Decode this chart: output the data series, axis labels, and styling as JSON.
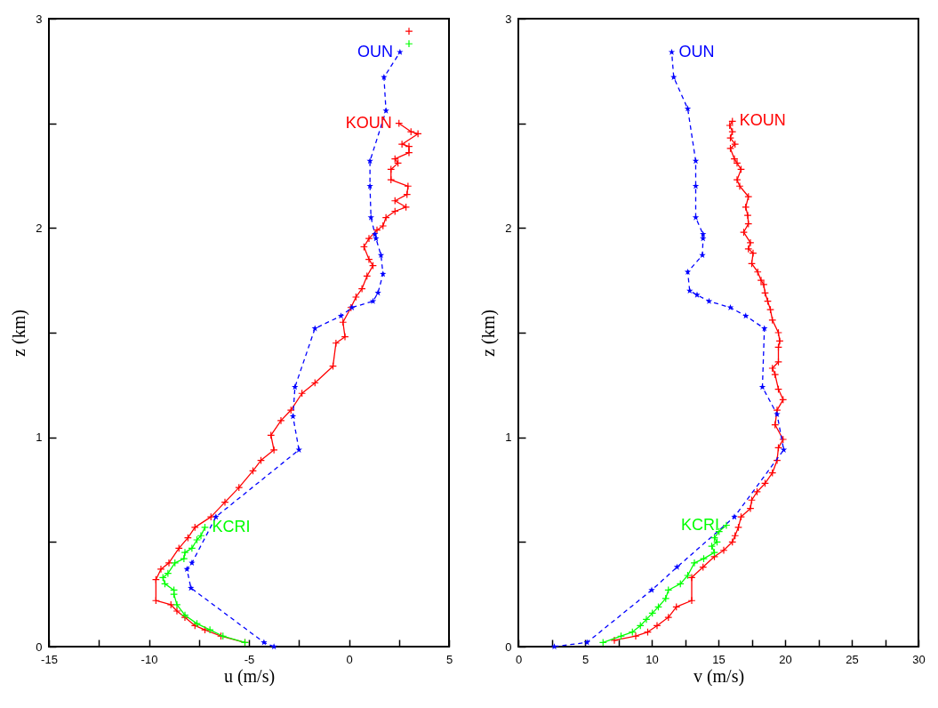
{
  "chart_data": [
    {
      "type": "line",
      "xlabel": "u (m/s)",
      "ylabel": "z (km)",
      "xlim": [
        -15,
        5
      ],
      "ylim": [
        0,
        3
      ],
      "xticks": [
        -15,
        {
          "value": -12.5,
          "label": null
        },
        -10,
        {
          "value": -7.5,
          "label": null
        },
        -5,
        {
          "value": -2.5,
          "label": null
        },
        0,
        {
          "value": 2.5,
          "label": null
        },
        5
      ],
      "yticks": [
        0,
        {
          "value": 0.5,
          "label": null
        },
        1,
        {
          "value": 1.5,
          "label": null
        },
        2,
        {
          "value": 2.5,
          "label": null
        },
        3
      ],
      "series": [
        {
          "name": "KOUN",
          "color": "#ff0000",
          "marker": "cross",
          "line_style": "solid",
          "x": [
            -5.2,
            -6.4,
            -7.2,
            -7.7,
            -8.2,
            -8.6,
            -8.9,
            -9.65,
            -9.65,
            -9.4,
            -9.0,
            -8.5,
            -8.05,
            -7.7,
            -6.9,
            -6.2,
            -5.5,
            -4.8,
            -4.4,
            -3.75,
            -3.9,
            -3.4,
            -2.9,
            -2.35,
            -1.7,
            -0.8,
            -0.65,
            -0.2,
            -0.3,
            0.1,
            0.35,
            0.65,
            0.9,
            1.2,
            1.0,
            0.75,
            1.0,
            1.4,
            1.7,
            1.85,
            2.3,
            2.85,
            2.3,
            2.9,
            2.95,
            2.1,
            2.1,
            2.45,
            2.3,
            3.0,
            3.0,
            2.65,
            3.45,
            3.1,
            2.5,
            null,
            3.0
          ],
          "values": [
            0.02,
            0.05,
            0.08,
            0.1,
            0.14,
            0.17,
            0.2,
            0.22,
            0.32,
            0.37,
            0.4,
            0.47,
            0.52,
            0.57,
            0.62,
            0.69,
            0.76,
            0.84,
            0.89,
            0.94,
            1.01,
            1.08,
            1.13,
            1.21,
            1.26,
            1.34,
            1.45,
            1.48,
            1.55,
            1.62,
            1.67,
            1.71,
            1.77,
            1.82,
            1.85,
            1.91,
            1.95,
            1.99,
            2.01,
            2.05,
            2.08,
            2.1,
            2.13,
            2.16,
            2.2,
            2.23,
            2.28,
            2.31,
            2.33,
            2.36,
            2.39,
            2.4,
            2.45,
            2.46,
            2.5,
            null,
            2.94
          ]
        },
        {
          "name": "OUN",
          "color": "#0000ff",
          "marker": "star",
          "line_style": "dashed",
          "x": [
            -3.75,
            -4.25,
            -7.9,
            -8.1,
            -7.85,
            -6.65,
            -2.5,
            -2.8,
            -2.7,
            -1.7,
            -0.4,
            0.15,
            1.2,
            1.45,
            1.7,
            1.6,
            1.35,
            1.3,
            1.1,
            1.05,
            1.05,
            1.85,
            1.75,
            2.55
          ],
          "values": [
            0.0,
            0.02,
            0.28,
            0.37,
            0.4,
            0.62,
            0.94,
            1.1,
            1.24,
            1.52,
            1.58,
            1.62,
            1.65,
            1.69,
            1.78,
            1.87,
            1.95,
            1.97,
            2.05,
            2.2,
            2.32,
            2.56,
            2.72,
            2.84
          ]
        },
        {
          "name": "KCRI",
          "color": "#00ff00",
          "marker": "cross",
          "line_style": "solid",
          "x": [
            -5.2,
            -6.3,
            -6.95,
            -7.6,
            -8.2,
            -8.6,
            -8.75,
            -8.75,
            -9.2,
            -9.3,
            -9.05,
            -8.7,
            -8.25,
            -8.2,
            -7.85,
            -7.6,
            -7.4,
            -7.2,
            null,
            3.0
          ],
          "values": [
            0.02,
            0.05,
            0.08,
            0.11,
            0.15,
            0.2,
            0.25,
            0.27,
            0.3,
            0.33,
            0.35,
            0.4,
            0.42,
            0.45,
            0.47,
            0.51,
            0.53,
            0.57,
            null,
            2.88
          ]
        }
      ]
    },
    {
      "type": "line",
      "xlabel": "v (m/s)",
      "ylabel": "z (km)",
      "xlim": [
        0,
        30
      ],
      "ylim": [
        0,
        3
      ],
      "xticks": [
        0,
        {
          "value": 2.5,
          "label": null
        },
        5,
        {
          "value": 7.5,
          "label": null
        },
        10,
        {
          "value": 12.5,
          "label": null
        },
        15,
        {
          "value": 17.5,
          "label": null
        },
        20,
        {
          "value": 22.5,
          "label": null
        },
        25,
        {
          "value": 27.5,
          "label": null
        },
        30
      ],
      "yticks": [
        0,
        {
          "value": 0.5,
          "label": null
        },
        1,
        {
          "value": 1.5,
          "label": null
        },
        2,
        {
          "value": 2.5,
          "label": null
        },
        3
      ],
      "series": [
        {
          "name": "KOUN",
          "color": "#ff0000",
          "marker": "cross",
          "line_style": "solid",
          "x": [
            7.2,
            8.8,
            9.7,
            10.4,
            11.25,
            11.85,
            13.0,
            13.0,
            13.85,
            14.7,
            15.4,
            16.05,
            16.25,
            16.5,
            16.7,
            17.4,
            17.5,
            17.9,
            18.5,
            19.05,
            19.4,
            19.5,
            19.85,
            19.25,
            19.4,
            19.85,
            19.5,
            19.25,
            19.05,
            19.5,
            19.5,
            19.6,
            19.5,
            19.05,
            18.9,
            18.7,
            18.5,
            18.4,
            18.2,
            17.95,
            17.5,
            17.6,
            17.25,
            17.4,
            16.9,
            17.25,
            17.2,
            17.05,
            17.25,
            16.6,
            16.4,
            16.7,
            16.4,
            16.2,
            15.9,
            16.25,
            15.9,
            16.05,
            15.85,
            16.05
          ],
          "values": [
            0.03,
            0.05,
            0.07,
            0.1,
            0.14,
            0.19,
            0.22,
            0.33,
            0.38,
            0.43,
            0.46,
            0.5,
            0.53,
            0.57,
            0.62,
            0.66,
            0.7,
            0.74,
            0.78,
            0.83,
            0.89,
            0.95,
            0.99,
            1.06,
            1.13,
            1.18,
            1.23,
            1.3,
            1.33,
            1.36,
            1.43,
            1.46,
            1.5,
            1.56,
            1.61,
            1.65,
            1.69,
            1.73,
            1.75,
            1.79,
            1.83,
            1.88,
            1.9,
            1.93,
            1.98,
            2.02,
            2.06,
            2.1,
            2.15,
            2.2,
            2.23,
            2.28,
            2.31,
            2.33,
            2.38,
            2.4,
            2.43,
            2.46,
            2.49,
            2.51
          ]
        },
        {
          "name": "OUN",
          "color": "#0000ff",
          "marker": "star",
          "line_style": "dashed",
          "x": [
            2.7,
            5.15,
            10.0,
            11.9,
            16.2,
            19.9,
            19.4,
            18.3,
            18.45,
            17.05,
            15.9,
            14.3,
            13.4,
            12.85,
            12.7,
            13.8,
            13.85,
            13.85,
            13.3,
            13.3,
            13.3,
            12.7,
            11.65,
            11.5
          ],
          "values": [
            0.0,
            0.02,
            0.27,
            0.38,
            0.62,
            0.94,
            1.11,
            1.24,
            1.52,
            1.58,
            1.62,
            1.65,
            1.68,
            1.7,
            1.79,
            1.87,
            1.95,
            1.97,
            2.05,
            2.2,
            2.32,
            2.57,
            2.72,
            2.84
          ]
        },
        {
          "name": "KCRI",
          "color": "#00ff00",
          "marker": "cross",
          "line_style": "solid",
          "x": [
            6.35,
            7.7,
            8.55,
            9.15,
            9.6,
            10.05,
            10.5,
            11.05,
            11.25,
            12.15,
            12.7,
            13.2,
            13.9,
            14.7,
            14.5,
            14.9,
            14.7,
            15.05,
            15.6
          ],
          "values": [
            0.02,
            0.05,
            0.07,
            0.1,
            0.13,
            0.16,
            0.19,
            0.23,
            0.27,
            0.3,
            0.34,
            0.4,
            0.42,
            0.45,
            0.48,
            0.5,
            0.52,
            0.55,
            0.58
          ]
        }
      ]
    }
  ]
}
